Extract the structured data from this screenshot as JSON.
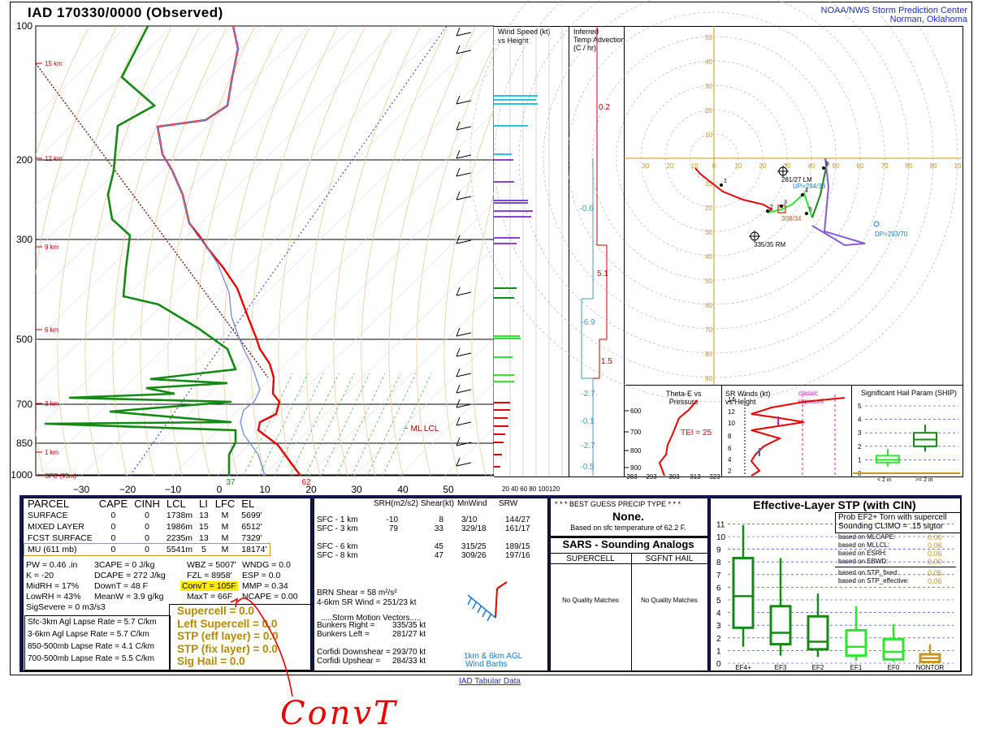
{
  "header": {
    "title": "IAD   170330/0000  (Observed)",
    "org_line1": "NOAA/NWS Storm Prediction Center",
    "org_line2": "Norman, Oklahoma"
  },
  "skewt": {
    "pressure_labels": [
      "100",
      "200",
      "300",
      "500",
      "700",
      "850",
      "1000"
    ],
    "height_labels": [
      "15 km",
      "12 km",
      "9 km",
      "6 km",
      "3 km",
      "1 km",
      "SFC (95m)"
    ],
    "temp_ticks": [
      "−30",
      "−20",
      "−10",
      "0",
      "10",
      "20",
      "30",
      "40",
      "50"
    ],
    "ml_lcl": "ML LCL",
    "sfc_td": "37",
    "sfc_t": "62"
  },
  "wind_speed": {
    "title1": "Wind Speed (kt)",
    "title2": "vs Height",
    "axis": "20 40 60 80 100120"
  },
  "temp_adv": {
    "title1": "Inferred",
    "title2": "Temp Advection",
    "title3": "(C / hr)",
    "values": [
      "0.2",
      "-0.6",
      "5.1",
      "-6.9",
      "1.5",
      "-2.7",
      "-0.1",
      "-2.7",
      "-0.5"
    ]
  },
  "hodo": {
    "rings": [
      "50",
      "40",
      "30",
      "20",
      "10",
      "10",
      "20",
      "30",
      "40",
      "50",
      "60",
      "70",
      "80",
      "90"
    ],
    "xlab": [
      "30",
      "20",
      "10",
      "0",
      "10",
      "20",
      "30",
      "40",
      "50",
      "60",
      "70",
      "80",
      "90",
      "10"
    ],
    "lm": "281/27 LM",
    "rm": "335/35 RM",
    "up": "UP=284/33",
    "dn": "DP=293/70",
    "mean": "308/34",
    "hgts": [
      "1",
      "2",
      "3",
      "4",
      "5",
      "6"
    ]
  },
  "theta": {
    "title1": "Theta-E vs",
    "title2": "Pressure",
    "tei": "TEI = 25",
    "p": [
      "600",
      "700",
      "800",
      "900"
    ],
    "x": [
      "283",
      "293",
      "303",
      "313",
      "323"
    ]
  },
  "sr": {
    "title1": "SR Winds (kt)",
    "title2": "vs Height",
    "classic": "classic",
    "supercell": "supercell",
    "y": [
      "14",
      "12",
      "10",
      "8",
      "6",
      "4",
      "2"
    ]
  },
  "ship": {
    "title": "Significant Hail Param (SHIP)",
    "y": [
      "5",
      "4",
      "3",
      "2",
      "1",
      "0"
    ],
    "lt": "< 2 in",
    "ge": ">= 2 in"
  },
  "parcel": {
    "headers": [
      "PARCEL",
      "CAPE",
      "CINH",
      "LCL",
      "LI",
      "LFC",
      "EL"
    ],
    "rows": [
      [
        "SURFACE",
        "0",
        "0",
        "1738m",
        "13",
        "M",
        "5699'"
      ],
      [
        "MIXED LAYER",
        "0",
        "0",
        "1986m",
        "15",
        "M",
        "6512'"
      ],
      [
        "FCST SURFACE",
        "0",
        "0",
        "2235m",
        "13",
        "M",
        "7329'"
      ],
      [
        "MU    (611 mb)",
        "0",
        "0",
        "5541m",
        "5",
        "M",
        "18174'"
      ]
    ],
    "indices": [
      [
        "PW = 0.46 .in",
        "3CAPE = 0 J/kg",
        "WBZ = 5007'",
        "WNDG = 0.0"
      ],
      [
        "K = -20",
        "DCAPE = 272 J/kg",
        "FZL = 8958'",
        "ESP = 0.0"
      ],
      [
        "MidRH = 17%",
        "DownT = 48 F",
        "ConvT = 105F",
        "MMP = 0.34"
      ],
      [
        "LowRH = 43%",
        "MeanW = 3.9 g/kg",
        "MaxT = 66F",
        "NCAPE = 0.00"
      ]
    ],
    "sigsevere": "SigSevere = 0 m3/s3",
    "lapse": [
      "Sfc-3km Agl Lapse Rate =  5.7 C/km",
      "3-6km Agl Lapse Rate =  5.7 C/km",
      "850-500mb Lapse Rate =  4.1 C/km",
      "700-500mb Lapse Rate =  5.5 C/km"
    ],
    "composite": [
      "Supercell = 0.0",
      "Left Supercell = 0.0",
      "STP (eff layer) = 0.0",
      "STP (fix layer) = 0.0",
      "Sig Hail = 0.0"
    ]
  },
  "kinematics": {
    "headers": [
      "SRH(m2/s2)",
      "Shear(kt)",
      "MnWind",
      "SRW"
    ],
    "rows": [
      [
        "SFC - 1 km",
        "-10",
        "8",
        "3/10",
        "144/27"
      ],
      [
        "SFC - 3 km",
        "79",
        "33",
        "329/18",
        "161/17"
      ],
      [
        "",
        "",
        " ",
        "",
        ""
      ],
      [
        "SFC - 6 km",
        "",
        "45",
        "315/25",
        "189/15"
      ],
      [
        "SFC - 8 km",
        "",
        "47",
        "309/26",
        "197/16"
      ]
    ],
    "brn": "BRN Shear =  58 m²/s²",
    "srwind": "4-6km SR Wind =         251/23 kt",
    "storm_motion": ".....Storm Motion Vectors.....",
    "vectors": [
      [
        "Bunkers Right =",
        "335/35 kt"
      ],
      [
        "Bunkers Left =",
        "281/27 kt"
      ],
      [
        "",
        ""
      ],
      [
        "Corfidi Downshear =",
        "293/70 kt"
      ],
      [
        "Corfidi Upshear =",
        "284/33 kt"
      ]
    ],
    "barb_caption1": "1km & 6km AGL",
    "barb_caption2": "Wind Barbs"
  },
  "precip": {
    "title": "* * * BEST GUESS PRECIP TYPE * * *",
    "value": "None.",
    "note": "Based on sfc temperature of 62.2 F."
  },
  "sars": {
    "title": "SARS - Sounding Analogs",
    "col1": "SUPERCELL",
    "col2": "SGFNT HAIL",
    "nm1": "No Quality Matches",
    "nm2": "No Quality Matches"
  },
  "stp": {
    "title": "Effective-Layer STP (with CIN)",
    "prob1": "Prob EF2+ Torn with supercell",
    "prob2": "Sounding CLIMO = .15 sigtor",
    "rows": [
      [
        "based on MLCAPE:",
        "0.00"
      ],
      [
        "based on MLLCL:",
        "0.06"
      ],
      [
        "based on ESRH:",
        "0.06"
      ],
      [
        "based on EBWD:",
        "0.00"
      ],
      [
        "based on STP_fixed:",
        "0.05"
      ],
      [
        "based on STP_effective:",
        "0.06"
      ]
    ],
    "yticks": [
      "11",
      "10",
      "9",
      "8",
      "7",
      "6",
      "5",
      "4",
      "3",
      "2",
      "1",
      "0"
    ],
    "cats": [
      "EF4+",
      "EF3",
      "EF2",
      "EF1",
      "EF0",
      "NONTOR"
    ]
  },
  "footer": "IAD Tabular Data",
  "annotation": "ConvT",
  "chart_data": {
    "type": "table",
    "title": "IAD   170330/0000  (Observed)",
    "stp_boxes": [
      {
        "cat": "EF4+",
        "p10": 1.3,
        "q1": 2.8,
        "med": 5.3,
        "q3": 8.3,
        "p90": 10.9
      },
      {
        "cat": "EF3",
        "p10": 0.6,
        "q1": 1.5,
        "med": 2.4,
        "q3": 4.5,
        "p90": 8.3
      },
      {
        "cat": "EF2",
        "p10": 0.5,
        "q1": 1.1,
        "med": 1.7,
        "q3": 3.7,
        "p90": 5.5
      },
      {
        "cat": "EF1",
        "p10": 0.2,
        "q1": 0.6,
        "med": 1.3,
        "q3": 2.6,
        "p90": 4.5
      },
      {
        "cat": "EF0",
        "p10": 0.1,
        "q1": 0.3,
        "med": 0.9,
        "q3": 1.9,
        "p90": 3.1
      },
      {
        "cat": "NONTOR",
        "p10": 0.0,
        "q1": 0.1,
        "med": 0.4,
        "q3": 0.7,
        "p90": 1.5
      }
    ],
    "ship_boxes": [
      {
        "cat": "< 2 in",
        "p10": 0.5,
        "q1": 0.8,
        "med": 1.0,
        "q3": 1.3,
        "p90": 1.8
      },
      {
        "cat": ">= 2 in",
        "p10": 1.6,
        "q1": 2.0,
        "med": 2.5,
        "q3": 3.0,
        "p90": 3.6
      }
    ]
  }
}
